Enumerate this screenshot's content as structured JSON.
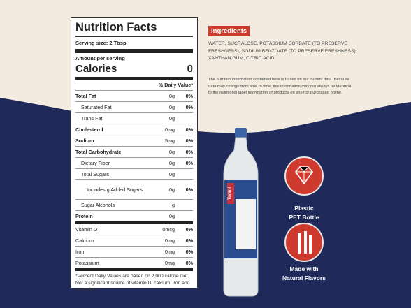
{
  "nutrition": {
    "title": "Nutrition Facts",
    "serving": "Serving size: 2 Tbsp.",
    "amount_per": "Amount per serving",
    "calories_label": "Calories",
    "calories": "0",
    "dv_header": "% Daily Value*",
    "rows": [
      {
        "name": "Total Fat",
        "amount": "0g",
        "dv": "0%",
        "style": "bold"
      },
      {
        "name": "Saturated Fat",
        "amount": "0g",
        "dv": "0%",
        "style": "sub"
      },
      {
        "name": "Trans Fat",
        "amount": "0g",
        "style": "sub"
      },
      {
        "name": "Cholesterol",
        "amount": "0mg",
        "dv": "0%",
        "style": "bold"
      },
      {
        "name": "Sodium",
        "amount": "5mg",
        "dv": "0%",
        "style": "bold"
      },
      {
        "name": "Total Carbohydrate",
        "amount": "0g",
        "dv": "0%",
        "style": "bold"
      },
      {
        "name": "Dietary Fiber",
        "amount": "0g",
        "dv": "0%",
        "style": "sub"
      },
      {
        "name": "Total Sugars",
        "amount": "0g",
        "style": "sub"
      },
      {
        "name": "Includes g Added Sugars",
        "amount": "0g",
        "dv": "0%",
        "style": "sub2"
      },
      {
        "name": "Sugar Alcohols",
        "amount": "g",
        "style": "sub"
      },
      {
        "name": "Protein",
        "amount": "0g",
        "style": "bold"
      },
      {
        "name": "Vitamin D",
        "amount": "0mcg",
        "dv": "0%",
        "style": "vit"
      },
      {
        "name": "Calcium",
        "amount": "0mg",
        "dv": "0%",
        "style": "vit"
      },
      {
        "name": "Iron",
        "amount": "0mg",
        "dv": "0%",
        "style": "vit"
      },
      {
        "name": "Potassium",
        "amount": "0mg",
        "dv": "0%",
        "style": "vit"
      }
    ],
    "footnote": "*Percent Daily Values are based on 2,000 calorie diet. Not a significant source of vitamin D, calcium, iron and potassium."
  },
  "ingredients": {
    "badge": "Ingredients",
    "text": "WATER, SUCRALOSE, POTASSIUM SORBATE (TO PRESERVE FRESHNESS), SODIUM BENZOATE (TO PRESERVE FRESHNESS), XANTHAN GUM, CITRIC ACID",
    "note": "The nutrition information contained here is based on our current data. Because data may change from time to time, this information may not always be identical to the nutritional label information of products on shelf or purchased online."
  },
  "bottle": {
    "brand": "Torani"
  },
  "features": [
    {
      "line1": "Plastic",
      "line2": "PET Bottle"
    },
    {
      "line1": "Made with",
      "line2": "Natural Flavors"
    }
  ]
}
